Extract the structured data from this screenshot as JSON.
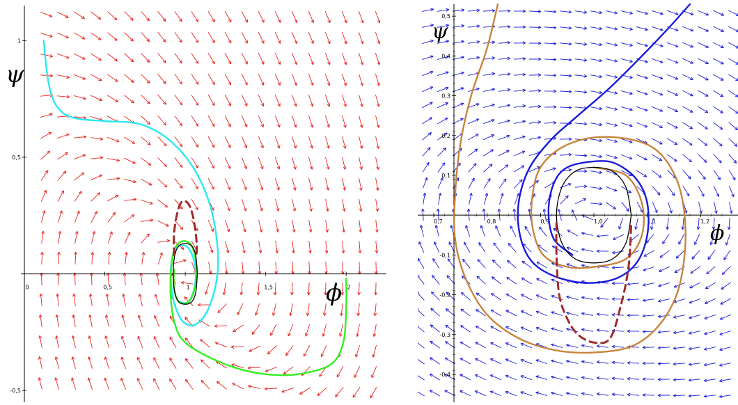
{
  "chart_data": [
    {
      "type": "line",
      "title": "",
      "xlabel": "ϕ",
      "ylabel": "ψ",
      "xlim": [
        0,
        2.25
      ],
      "ylim": [
        -0.55,
        1.15
      ],
      "x_ticks": [
        {
          "value": 0,
          "label": "0"
        },
        {
          "value": 0.5,
          "label": "0,5"
        },
        {
          "value": 1,
          "label": "1"
        },
        {
          "value": 1.5,
          "label": "1,5"
        },
        {
          "value": 2,
          "label": "2"
        }
      ],
      "y_ticks": [
        {
          "value": 1,
          "label": "1"
        },
        {
          "value": 0.5,
          "label": "0,5"
        },
        {
          "value": -0.5,
          "label": "-0,5"
        }
      ],
      "grid": false,
      "legend": "none",
      "vector_field": {
        "color": "#e8211b",
        "form": "dphi = psi, dpsi = -(phi - 1) - 1.1*psi"
      },
      "series": [
        {
          "color": "#2be8f0",
          "style": "solid",
          "points": [
            [
              0.12,
              1.0
            ],
            [
              0.15,
              0.82
            ],
            [
              0.2,
              0.72
            ],
            [
              0.3,
              0.67
            ],
            [
              0.5,
              0.655
            ],
            [
              0.7,
              0.645
            ],
            [
              0.85,
              0.6
            ],
            [
              0.98,
              0.52
            ],
            [
              1.08,
              0.42
            ],
            [
              1.16,
              0.28
            ],
            [
              1.2,
              0.12
            ],
            [
              1.2,
              0.0
            ],
            [
              1.17,
              -0.1
            ],
            [
              1.12,
              -0.18
            ],
            [
              1.05,
              -0.22
            ],
            [
              0.98,
              -0.2
            ],
            [
              0.93,
              -0.12
            ],
            [
              0.91,
              -0.02
            ],
            [
              0.92,
              0.07
            ],
            [
              0.96,
              0.12
            ],
            [
              1.02,
              0.11
            ],
            [
              1.06,
              0.04
            ],
            [
              1.06,
              -0.05
            ],
            [
              1.02,
              -0.12
            ],
            [
              0.96,
              -0.12
            ]
          ]
        },
        {
          "color": "#33ee22",
          "style": "solid",
          "points": [
            [
              2.0,
              -0.02
            ],
            [
              2.0,
              -0.15
            ],
            [
              1.98,
              -0.3
            ],
            [
              1.9,
              -0.39
            ],
            [
              1.7,
              -0.43
            ],
            [
              1.5,
              -0.43
            ],
            [
              1.3,
              -0.4
            ],
            [
              1.1,
              -0.34
            ],
            [
              0.98,
              -0.28
            ],
            [
              0.93,
              -0.2
            ],
            [
              0.91,
              -0.1
            ],
            [
              0.91,
              0.0
            ],
            [
              0.93,
              0.1
            ],
            [
              0.98,
              0.14
            ],
            [
              1.04,
              0.12
            ],
            [
              1.07,
              0.03
            ],
            [
              1.06,
              -0.06
            ],
            [
              1.02,
              -0.12
            ],
            [
              0.96,
              -0.12
            ],
            [
              0.93,
              -0.06
            ],
            [
              0.93,
              0.02
            ]
          ]
        },
        {
          "color": "#000000",
          "style": "solid",
          "points": [
            [
              1.075,
              0.0
            ],
            [
              1.065,
              0.08
            ],
            [
              1.04,
              0.12
            ],
            [
              1.0,
              0.13
            ],
            [
              0.96,
              0.12
            ],
            [
              0.935,
              0.08
            ],
            [
              0.925,
              0.0
            ],
            [
              0.935,
              -0.08
            ],
            [
              0.96,
              -0.12
            ],
            [
              1.0,
              -0.13
            ],
            [
              1.04,
              -0.12
            ],
            [
              1.065,
              -0.08
            ],
            [
              1.075,
              0.0
            ]
          ]
        },
        {
          "color": "#a02a2a",
          "style": "dashed",
          "points": [
            [
              0.93,
              0.08
            ],
            [
              0.93,
              0.17
            ],
            [
              0.95,
              0.26
            ],
            [
              0.98,
              0.31
            ],
            [
              1.02,
              0.3
            ],
            [
              1.05,
              0.24
            ],
            [
              1.07,
              0.14
            ],
            [
              1.07,
              0.08
            ]
          ]
        }
      ]
    },
    {
      "type": "line",
      "title": "",
      "xlabel": "ϕ",
      "ylabel": "ψ",
      "xlim": [
        0.67,
        1.27
      ],
      "ylim": [
        -0.47,
        0.53
      ],
      "x_ticks": [
        {
          "value": 0.7,
          "label": "0,7"
        },
        {
          "value": 0.8,
          "label": "0,8"
        },
        {
          "value": 0.9,
          "label": "0,9"
        },
        {
          "value": 1.0,
          "label": "1,0"
        },
        {
          "value": 1.1,
          "label": "1,1"
        },
        {
          "value": 1.2,
          "label": "1,2"
        }
      ],
      "y_ticks": [
        {
          "value": 0.5,
          "label": "0,5"
        },
        {
          "value": 0.4,
          "label": "0,4"
        },
        {
          "value": 0.3,
          "label": "0,3"
        },
        {
          "value": 0.2,
          "label": "0,2"
        },
        {
          "value": 0.1,
          "label": "0,1"
        },
        {
          "value": -0.1,
          "label": "-0,1"
        },
        {
          "value": -0.2,
          "label": "-0,2"
        },
        {
          "value": -0.3,
          "label": "-0,3"
        },
        {
          "value": -0.4,
          "label": "-0,4"
        }
      ],
      "grid": false,
      "legend": "none",
      "vector_field": {
        "color": "#1a1adb",
        "form": "dphi = psi, dpsi = -(phi - 1) - 0.3*psi"
      },
      "series": [
        {
          "color": "#c8843c",
          "style": "solid",
          "points": [
            [
              0.82,
              0.53
            ],
            [
              0.8,
              0.42
            ],
            [
              0.77,
              0.3
            ],
            [
              0.75,
              0.18
            ],
            [
              0.74,
              0.05
            ],
            [
              0.74,
              -0.06
            ],
            [
              0.76,
              -0.16
            ],
            [
              0.8,
              -0.25
            ],
            [
              0.86,
              -0.31
            ],
            [
              0.93,
              -0.34
            ],
            [
              1.0,
              -0.345
            ],
            [
              1.07,
              -0.33
            ],
            [
              1.12,
              -0.28
            ],
            [
              1.155,
              -0.2
            ],
            [
              1.17,
              -0.1
            ],
            [
              1.17,
              0.0
            ],
            [
              1.155,
              0.09
            ],
            [
              1.12,
              0.16
            ],
            [
              1.07,
              0.19
            ],
            [
              1.0,
              0.195
            ],
            [
              0.94,
              0.17
            ],
            [
              0.9,
              0.12
            ],
            [
              0.885,
              0.05
            ],
            [
              0.885,
              -0.03
            ],
            [
              0.905,
              -0.1
            ],
            [
              0.95,
              -0.13
            ],
            [
              1.0,
              -0.13
            ],
            [
              1.06,
              -0.11
            ],
            [
              1.09,
              -0.05
            ],
            [
              1.09,
              0.03
            ],
            [
              1.06,
              0.1
            ],
            [
              1.0,
              0.12
            ]
          ]
        },
        {
          "color": "#1a1adb",
          "style": "solid",
          "points": [
            [
              1.18,
              0.53
            ],
            [
              1.14,
              0.47
            ],
            [
              1.09,
              0.4
            ],
            [
              1.03,
              0.32
            ],
            [
              0.97,
              0.25
            ],
            [
              0.92,
              0.19
            ],
            [
              0.88,
              0.12
            ],
            [
              0.86,
              0.04
            ],
            [
              0.86,
              -0.04
            ],
            [
              0.88,
              -0.11
            ],
            [
              0.92,
              -0.15
            ],
            [
              0.98,
              -0.17
            ],
            [
              1.04,
              -0.16
            ],
            [
              1.08,
              -0.12
            ],
            [
              1.1,
              -0.05
            ],
            [
              1.1,
              0.03
            ],
            [
              1.08,
              0.09
            ],
            [
              1.04,
              0.13
            ],
            [
              1.0,
              0.135
            ],
            [
              0.95,
              0.12
            ],
            [
              0.925,
              0.08
            ],
            [
              0.915,
              0.01
            ],
            [
              0.925,
              -0.06
            ],
            [
              0.96,
              -0.1
            ]
          ]
        },
        {
          "color": "#000000",
          "style": "solid",
          "points": [
            [
              1.07,
              0.0
            ],
            [
              1.06,
              0.07
            ],
            [
              1.035,
              0.11
            ],
            [
              1.0,
              0.12
            ],
            [
              0.965,
              0.11
            ],
            [
              0.94,
              0.07
            ],
            [
              0.93,
              0.0
            ],
            [
              0.94,
              -0.07
            ],
            [
              0.965,
              -0.11
            ],
            [
              1.0,
              -0.12
            ],
            [
              1.035,
              -0.11
            ],
            [
              1.06,
              -0.07
            ],
            [
              1.07,
              0.0
            ]
          ]
        },
        {
          "color": "#a02a2a",
          "style": "dashed",
          "points": [
            [
              0.93,
              -0.02
            ],
            [
              0.93,
              -0.1
            ],
            [
              0.935,
              -0.2
            ],
            [
              0.95,
              -0.26
            ],
            [
              0.97,
              -0.3
            ],
            [
              1.0,
              -0.32
            ],
            [
              1.03,
              -0.31
            ],
            [
              1.05,
              -0.23
            ],
            [
              1.065,
              -0.13
            ],
            [
              1.07,
              -0.02
            ]
          ]
        }
      ]
    }
  ]
}
